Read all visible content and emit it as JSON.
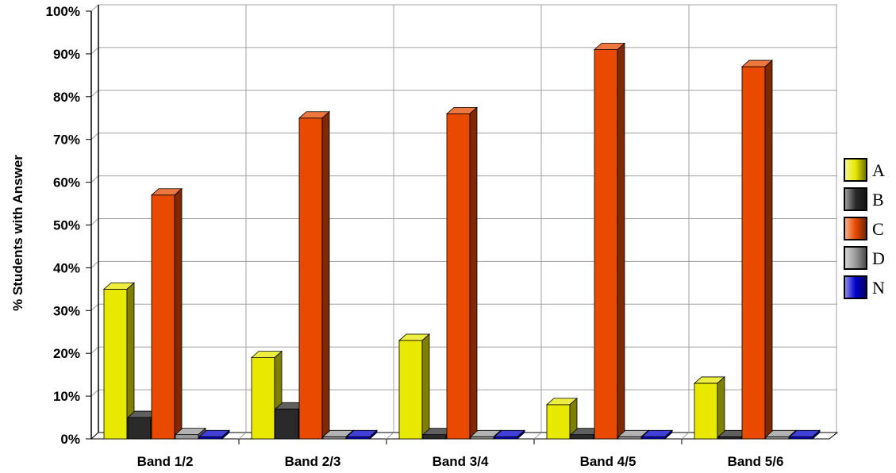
{
  "chart_data": {
    "type": "bar",
    "title": "",
    "xlabel": "",
    "ylabel": "% Students with Answer",
    "ylim": [
      0,
      100
    ],
    "yticks": [
      "0%",
      "10%",
      "20%",
      "30%",
      "40%",
      "50%",
      "60%",
      "70%",
      "80%",
      "90%",
      "100%"
    ],
    "categories": [
      "Band 1/2",
      "Band 2/3",
      "Band 3/4",
      "Band 4/5",
      "Band 5/6"
    ],
    "series": [
      {
        "name": "A",
        "color": "#e8e800",
        "values": [
          35,
          19,
          23,
          8,
          13
        ]
      },
      {
        "name": "B",
        "color": "#2a2a2a",
        "values": [
          5,
          7,
          1,
          1,
          0.5
        ]
      },
      {
        "name": "C",
        "color": "#e84a00",
        "values": [
          57,
          75,
          76,
          91,
          87
        ]
      },
      {
        "name": "D",
        "color": "#9a9a9a",
        "values": [
          1,
          0.5,
          0.5,
          0.5,
          0.5
        ]
      },
      {
        "name": "N",
        "color": "#0000cc",
        "values": [
          0.5,
          0.5,
          0.5,
          0.5,
          0.5
        ]
      }
    ],
    "grid": true,
    "legend_position": "right"
  }
}
